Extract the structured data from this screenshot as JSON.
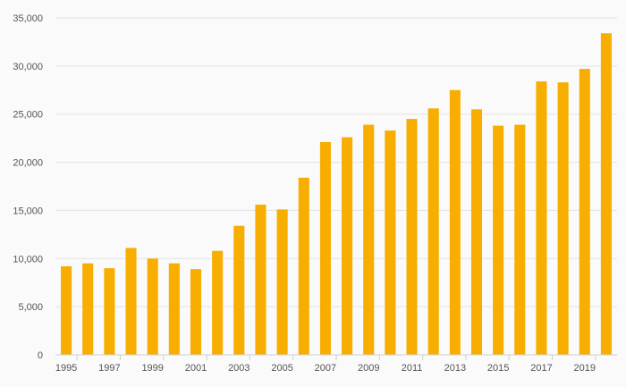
{
  "chart_data": {
    "type": "bar",
    "title": "",
    "xlabel": "",
    "ylabel": "",
    "categories": [
      "1995",
      "1996",
      "1997",
      "1998",
      "1999",
      "2000",
      "2001",
      "2002",
      "2003",
      "2004",
      "2005",
      "2006",
      "2007",
      "2008",
      "2009",
      "2010",
      "2011",
      "2012",
      "2013",
      "2014",
      "2015",
      "2016",
      "2017",
      "2018",
      "2019",
      "2020"
    ],
    "x_tick_labels": [
      "1995",
      "",
      "1997",
      "",
      "1999",
      "",
      "2001",
      "",
      "2003",
      "",
      "2005",
      "",
      "2007",
      "",
      "2009",
      "",
      "2011",
      "",
      "2013",
      "",
      "2015",
      "",
      "2017",
      "",
      "2019",
      ""
    ],
    "values": [
      9200,
      9500,
      9000,
      11100,
      10000,
      9500,
      8900,
      10800,
      13400,
      15600,
      15100,
      18400,
      22100,
      22600,
      23900,
      23300,
      24500,
      25600,
      27500,
      25500,
      23800,
      23900,
      28400,
      28300,
      29700,
      33400
    ],
    "ylim": [
      0,
      35000
    ],
    "y_ticks": [
      0,
      5000,
      10000,
      15000,
      20000,
      25000,
      30000,
      35000
    ],
    "y_tick_labels": [
      "0",
      "5,000",
      "10,000",
      "15,000",
      "20,000",
      "25,000",
      "30,000",
      "35,000"
    ],
    "bar_color": "#f7ae00",
    "grid": true,
    "legend": "none"
  }
}
